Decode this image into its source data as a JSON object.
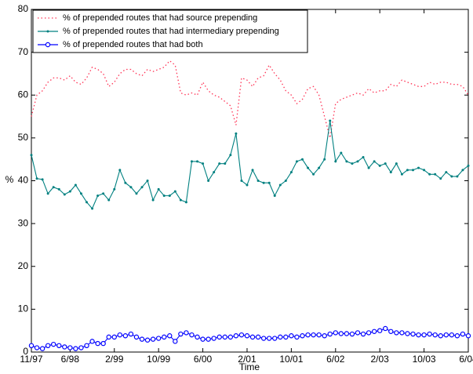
{
  "chart_data": {
    "type": "line",
    "x_label": "Time",
    "y_label": "%",
    "categories": [
      "11/97",
      null,
      null,
      null,
      null,
      null,
      null,
      "6/98",
      null,
      null,
      null,
      null,
      null,
      null,
      null,
      "2/99",
      null,
      null,
      null,
      null,
      null,
      null,
      null,
      "10/99",
      null,
      null,
      null,
      null,
      null,
      null,
      null,
      "6/00",
      null,
      null,
      null,
      null,
      null,
      null,
      null,
      "2/01",
      null,
      null,
      null,
      null,
      null,
      null,
      null,
      "10/01",
      null,
      null,
      null,
      null,
      null,
      null,
      null,
      "6/02",
      null,
      null,
      null,
      null,
      null,
      null,
      null,
      "2/03",
      null,
      null,
      null,
      null,
      null,
      null,
      null,
      "10/03",
      null,
      null,
      null,
      null,
      null,
      null,
      null,
      "6/04"
    ],
    "series": [
      {
        "name": "% of prepended routes that had source prepending",
        "color": "#ff3355",
        "dash": "dotted",
        "marker": "none",
        "values": [
          55,
          60,
          61,
          63,
          64,
          64,
          63.5,
          64.5,
          63,
          62.5,
          64,
          66.5,
          66,
          65,
          62,
          63,
          65,
          66,
          66,
          65,
          64.5,
          66,
          65.5,
          66,
          66.5,
          68,
          67,
          60.5,
          60,
          60.5,
          60,
          63,
          61,
          60,
          59.5,
          58.5,
          57.5,
          53,
          64,
          63.5,
          62,
          64,
          64.5,
          67,
          65,
          63.5,
          61,
          60,
          58,
          59,
          61.5,
          62,
          60,
          55,
          50,
          58,
          59,
          59.5,
          60,
          60.5,
          60,
          61.5,
          60.5,
          61,
          61,
          62.5,
          62,
          63.5,
          63,
          62.5,
          62,
          62,
          63,
          62.5,
          63,
          63,
          62.5,
          62.5,
          62,
          60
        ]
      },
      {
        "name": "% of prepended routes that had intermediary prepending",
        "color": "#008080",
        "dash": "solid",
        "marker": "dot",
        "values": [
          46,
          40.5,
          40.3,
          37,
          38.5,
          38,
          36.8,
          37.5,
          39,
          37,
          35,
          33.5,
          36.5,
          37,
          35.5,
          38,
          42.5,
          39.5,
          38.5,
          37,
          38.5,
          40,
          35.5,
          38,
          36.5,
          36.5,
          37.5,
          35.5,
          35,
          44.5,
          44.5,
          44,
          40,
          42,
          44,
          44,
          46,
          51,
          40,
          39,
          42.5,
          40,
          39.5,
          39.5,
          36.5,
          39,
          40,
          42,
          44.5,
          45,
          43,
          41.5,
          43,
          45,
          54,
          44.5,
          46.5,
          44.5,
          44,
          44.5,
          45.5,
          43,
          44.5,
          43.5,
          44,
          42,
          44,
          41.5,
          42.5,
          42.5,
          43,
          42.5,
          41.5,
          41.5,
          40.5,
          42,
          41,
          41,
          42.5,
          43.5
        ]
      },
      {
        "name": "% of prepended routes that had both",
        "color": "#0000ff",
        "dash": "solid",
        "marker": "circle",
        "values": [
          1.5,
          1,
          0.8,
          1.5,
          1.8,
          1.5,
          1.2,
          1,
          0.8,
          1,
          1.5,
          2.5,
          2,
          2,
          3.5,
          3.5,
          4,
          3.8,
          4.2,
          3.5,
          3,
          2.8,
          3,
          3.2,
          3.5,
          3.8,
          2.5,
          4.2,
          4.5,
          4,
          3.5,
          3,
          3,
          3.2,
          3.5,
          3.5,
          3.5,
          3.8,
          4,
          3.8,
          3.5,
          3.5,
          3.2,
          3.2,
          3.2,
          3.5,
          3.5,
          3.8,
          3.5,
          3.8,
          4,
          4,
          4,
          3.8,
          4.2,
          4.5,
          4.3,
          4.3,
          4.2,
          4.5,
          4.2,
          4.5,
          4.8,
          5,
          5.5,
          4.8,
          4.5,
          4.5,
          4.3,
          4.2,
          4,
          4,
          4.2,
          4,
          3.8,
          4,
          4,
          3.8,
          4.2,
          3.8
        ]
      }
    ],
    "ylim": [
      0,
      80
    ],
    "yticks": [
      0,
      10,
      20,
      30,
      40,
      50,
      60,
      70,
      80
    ],
    "grid": false,
    "legend": "upper left"
  }
}
